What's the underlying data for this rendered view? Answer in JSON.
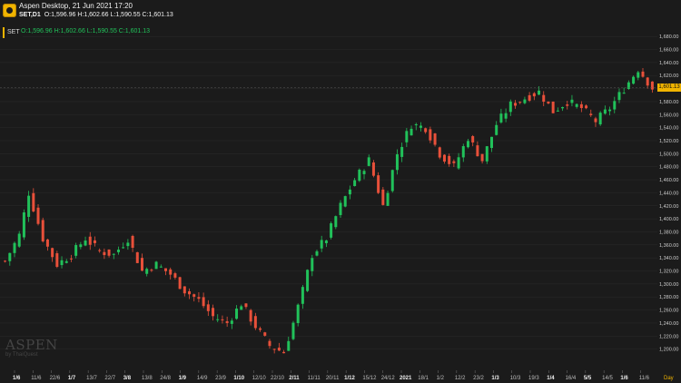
{
  "window": {
    "title": "Aspen Desktop, 21 Jun 2021 17:20",
    "symbol_tf": "SET,D1",
    "ohlc": "O:1,596.96 H:1,602.66 L:1,590.55 C:1,601.13"
  },
  "panel": {
    "symbol": "SET",
    "ohlc": "O:1,596.96 H:1,602.66 L:1,590.55 C:1,601.13"
  },
  "watermark": {
    "line1": "ASPEN",
    "line2": "by ThaiQuest"
  },
  "colors": {
    "up": "#21c15a",
    "down": "#e8503a",
    "accent": "#f0b400",
    "grid": "#2c2c2c"
  },
  "chart_data": {
    "type": "candlestick",
    "title": "",
    "symbol": "SET",
    "timeframe": "D1",
    "ylim": [
      1180,
      1690
    ],
    "yticks": [
      1200,
      1220,
      1240,
      1260,
      1280,
      1300,
      1320,
      1340,
      1360,
      1380,
      1400,
      1420,
      1440,
      1460,
      1480,
      1500,
      1520,
      1540,
      1560,
      1580,
      1600,
      1620,
      1640,
      1660,
      1680
    ],
    "last_price": 1601.13,
    "last_price_label": "1,601.13",
    "x_labels": [
      "1/6",
      "11/6",
      "22/6",
      "1/7",
      "13/7",
      "22/7",
      "3/8",
      "13/8",
      "24/8",
      "1/9",
      "14/9",
      "23/9",
      "1/10",
      "12/10",
      "22/10",
      "2/11",
      "11/11",
      "20/11",
      "1/12",
      "15/12",
      "24/12",
      "2021",
      "18/1",
      "1/2",
      "12/2",
      "23/2",
      "1/3",
      "10/3",
      "19/3",
      "1/4",
      "16/4",
      "5/5",
      "14/5",
      "1/6",
      "11/6"
    ],
    "bold_labels": [
      "1/7",
      "3/8",
      "1/9",
      "1/10",
      "2/11",
      "1/12",
      "2021",
      "1/3",
      "1/4",
      "5/5",
      "1/6"
    ],
    "period_label": "Day",
    "closes": [
      {
        "i": 0,
        "c": 1335
      },
      {
        "i": 3,
        "c": 1375
      },
      {
        "i": 5,
        "c": 1440
      },
      {
        "i": 8,
        "c": 1370
      },
      {
        "i": 11,
        "c": 1330
      },
      {
        "i": 14,
        "c": 1345
      },
      {
        "i": 17,
        "c": 1370
      },
      {
        "i": 20,
        "c": 1350
      },
      {
        "i": 23,
        "c": 1345
      },
      {
        "i": 26,
        "c": 1370
      },
      {
        "i": 29,
        "c": 1320
      },
      {
        "i": 32,
        "c": 1330
      },
      {
        "i": 35,
        "c": 1315
      },
      {
        "i": 38,
        "c": 1290
      },
      {
        "i": 41,
        "c": 1275
      },
      {
        "i": 44,
        "c": 1250
      },
      {
        "i": 47,
        "c": 1240
      },
      {
        "i": 50,
        "c": 1270
      },
      {
        "i": 53,
        "c": 1235
      },
      {
        "i": 56,
        "c": 1205
      },
      {
        "i": 59,
        "c": 1195
      },
      {
        "i": 61,
        "c": 1240
      },
      {
        "i": 63,
        "c": 1290
      },
      {
        "i": 65,
        "c": 1345
      },
      {
        "i": 68,
        "c": 1370
      },
      {
        "i": 71,
        "c": 1420
      },
      {
        "i": 74,
        "c": 1460
      },
      {
        "i": 77,
        "c": 1490
      },
      {
        "i": 80,
        "c": 1420
      },
      {
        "i": 83,
        "c": 1500
      },
      {
        "i": 86,
        "c": 1545
      },
      {
        "i": 89,
        "c": 1540
      },
      {
        "i": 92,
        "c": 1500
      },
      {
        "i": 95,
        "c": 1480
      },
      {
        "i": 98,
        "c": 1525
      },
      {
        "i": 101,
        "c": 1490
      },
      {
        "i": 104,
        "c": 1545
      },
      {
        "i": 107,
        "c": 1575
      },
      {
        "i": 110,
        "c": 1585
      },
      {
        "i": 113,
        "c": 1595
      },
      {
        "i": 116,
        "c": 1565
      },
      {
        "i": 119,
        "c": 1580
      },
      {
        "i": 122,
        "c": 1570
      },
      {
        "i": 125,
        "c": 1550
      },
      {
        "i": 128,
        "c": 1570
      },
      {
        "i": 131,
        "c": 1600
      },
      {
        "i": 134,
        "c": 1630
      },
      {
        "i": 137,
        "c": 1601
      }
    ],
    "nbars": 138
  }
}
